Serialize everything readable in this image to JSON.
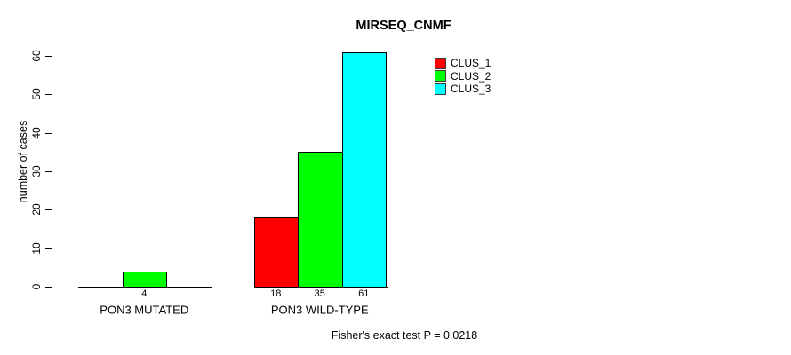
{
  "chart_data": {
    "type": "bar",
    "title": "MIRSEQ_CNMF",
    "ylabel": "number of cases",
    "xlabel": "",
    "ylim": [
      0,
      60
    ],
    "yticks": [
      0,
      10,
      20,
      30,
      40,
      50,
      60
    ],
    "grid": false,
    "categories": [
      "PON3 MUTATED",
      "PON3 WILD-TYPE"
    ],
    "series": [
      {
        "name": "CLUS_1",
        "color": "#ff0000",
        "values": [
          0,
          18
        ]
      },
      {
        "name": "CLUS_2",
        "color": "#00ff00",
        "values": [
          4,
          35
        ]
      },
      {
        "name": "CLUS_3",
        "color": "#00ffff",
        "values": [
          0,
          61
        ]
      }
    ],
    "bar_value_labels": [
      [
        "",
        "4",
        ""
      ],
      [
        "18",
        "35",
        "61"
      ]
    ],
    "legend": {
      "position": "top-right",
      "entries": [
        {
          "label": "CLUS_1",
          "color": "#ff0000"
        },
        {
          "label": "CLUS_2",
          "color": "#00ff00"
        },
        {
          "label": "CLUS_3",
          "color": "#00ffff"
        }
      ]
    },
    "annotation": "Fisher's exact test P = 0.0218"
  }
}
